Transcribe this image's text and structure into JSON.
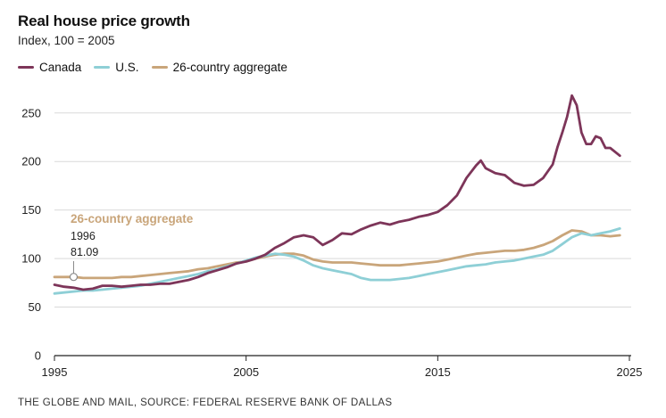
{
  "header": {
    "title": "Real house price growth",
    "subtitle": "Index, 100 = 2005"
  },
  "source": "THE GLOBE AND MAIL, SOURCE: FEDERAL RESERVE BANK OF DALLAS",
  "chart_data": {
    "type": "line",
    "title": "Real house price growth",
    "subtitle": "Index, 100 = 2005",
    "xlabel": "",
    "ylabel": "",
    "xlim": [
      1995,
      2025
    ],
    "ylim": [
      0,
      270
    ],
    "x_ticks": [
      1995,
      2005,
      2015,
      2025
    ],
    "y_ticks": [
      0,
      50,
      100,
      150,
      200,
      250
    ],
    "grid": true,
    "legend_position": "top-left",
    "series": [
      {
        "name": "Canada",
        "color": "#7d3559",
        "x": [
          1995,
          1995.5,
          1996,
          1996.5,
          1997,
          1997.5,
          1998,
          1998.5,
          1999,
          1999.5,
          2000,
          2000.5,
          2001,
          2001.5,
          2002,
          2002.5,
          2003,
          2003.5,
          2004,
          2004.5,
          2005,
          2005.5,
          2006,
          2006.5,
          2007,
          2007.5,
          2008,
          2008.5,
          2009,
          2009.5,
          2010,
          2010.5,
          2011,
          2011.5,
          2012,
          2012.5,
          2013,
          2013.5,
          2014,
          2014.5,
          2015,
          2015.5,
          2016,
          2016.5,
          2017,
          2017.25,
          2017.5,
          2018,
          2018.5,
          2019,
          2019.5,
          2020,
          2020.5,
          2021,
          2021.25,
          2021.5,
          2021.75,
          2022,
          2022.25,
          2022.5,
          2022.75,
          2023,
          2023.25,
          2023.5,
          2023.75,
          2024,
          2024.5
        ],
        "values": [
          73,
          71,
          70,
          68,
          69,
          72,
          72,
          71,
          72,
          73,
          73,
          74,
          74,
          76,
          78,
          81,
          85,
          88,
          91,
          95,
          97,
          100,
          104,
          111,
          116,
          122,
          124,
          122,
          114,
          119,
          126,
          125,
          130,
          134,
          137,
          135,
          138,
          140,
          143,
          145,
          148,
          155,
          165,
          183,
          196,
          201,
          193,
          188,
          186,
          178,
          175,
          176,
          183,
          197,
          215,
          230,
          246,
          268,
          258,
          230,
          218,
          218,
          226,
          224,
          214,
          214,
          206
        ]
      },
      {
        "name": "U.S.",
        "color": "#8ecfd6",
        "x": [
          1995,
          1995.5,
          1996,
          1996.5,
          1997,
          1997.5,
          1998,
          1998.5,
          1999,
          1999.5,
          2000,
          2000.5,
          2001,
          2001.5,
          2002,
          2002.5,
          2003,
          2003.5,
          2004,
          2004.5,
          2005,
          2005.5,
          2006,
          2006.5,
          2007,
          2007.5,
          2008,
          2008.5,
          2009,
          2009.5,
          2010,
          2010.5,
          2011,
          2011.5,
          2012,
          2012.5,
          2013,
          2013.5,
          2014,
          2014.5,
          2015,
          2015.5,
          2016,
          2016.5,
          2017,
          2017.5,
          2018,
          2018.5,
          2019,
          2019.5,
          2020,
          2020.5,
          2021,
          2021.5,
          2022,
          2022.5,
          2023,
          2023.5,
          2024,
          2024.5
        ],
        "values": [
          64,
          65,
          66,
          67,
          67,
          68,
          69,
          70,
          71,
          72,
          74,
          76,
          78,
          80,
          82,
          84,
          87,
          89,
          92,
          95,
          98,
          101,
          103,
          105,
          104,
          102,
          98,
          93,
          90,
          88,
          86,
          84,
          80,
          78,
          78,
          78,
          79,
          80,
          82,
          84,
          86,
          88,
          90,
          92,
          93,
          94,
          96,
          97,
          98,
          100,
          102,
          104,
          108,
          115,
          122,
          126,
          124,
          126,
          128,
          131
        ]
      },
      {
        "name": "26-country aggregate",
        "color": "#c9a57a",
        "x": [
          1995,
          1995.5,
          1996,
          1996.5,
          1997,
          1997.5,
          1998,
          1998.5,
          1999,
          1999.5,
          2000,
          2000.5,
          2001,
          2001.5,
          2002,
          2002.5,
          2003,
          2003.5,
          2004,
          2004.5,
          2005,
          2005.5,
          2006,
          2006.5,
          2007,
          2007.5,
          2008,
          2008.5,
          2009,
          2009.5,
          2010,
          2010.5,
          2011,
          2011.5,
          2012,
          2012.5,
          2013,
          2013.5,
          2014,
          2014.5,
          2015,
          2015.5,
          2016,
          2016.5,
          2017,
          2017.5,
          2018,
          2018.5,
          2019,
          2019.5,
          2020,
          2020.5,
          2021,
          2021.5,
          2022,
          2022.5,
          2023,
          2023.5,
          2024,
          2024.5
        ],
        "values": [
          81,
          81,
          81.09,
          80,
          80,
          80,
          80,
          81,
          81,
          82,
          83,
          84,
          85,
          86,
          87,
          89,
          90,
          92,
          94,
          96,
          97,
          100,
          102,
          104,
          105,
          105,
          103,
          99,
          97,
          96,
          96,
          96,
          95,
          94,
          93,
          93,
          93,
          94,
          95,
          96,
          97,
          99,
          101,
          103,
          105,
          106,
          107,
          108,
          108,
          109,
          111,
          114,
          118,
          124,
          129,
          128,
          124,
          124,
          123,
          124
        ]
      }
    ],
    "annotations": [
      {
        "series": "26-country aggregate",
        "label": "26-country aggregate",
        "year_label": "1996",
        "value_label": "81.09",
        "x": 1996,
        "y": 81.09
      }
    ]
  }
}
